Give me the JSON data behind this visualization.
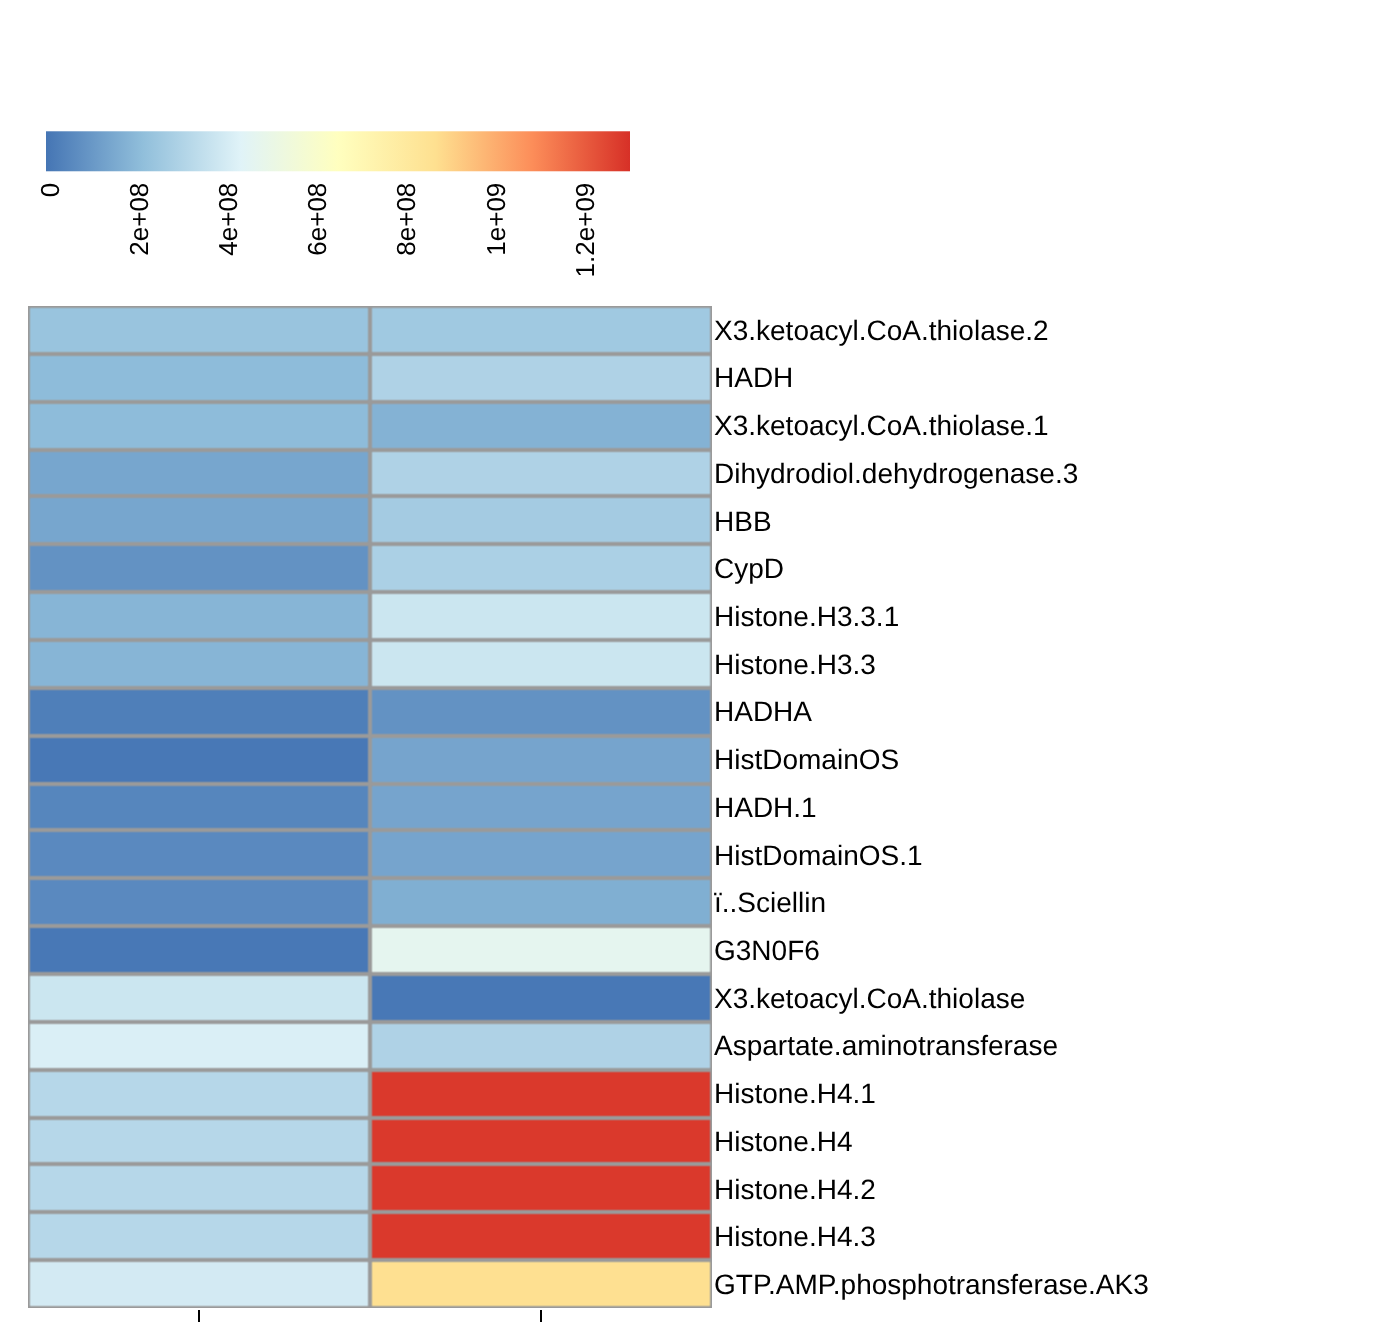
{
  "chart_data": {
    "type": "heatmap",
    "categories": [
      null,
      null
    ],
    "y_categories": [
      "X3.ketoacyl.CoA.thiolase.2",
      "HADH",
      "X3.ketoacyl.CoA.thiolase.1",
      "Dihydrodiol.dehydrogenase.3",
      "HBB",
      "CypD",
      "Histone.H3.3.1",
      "Histone.H3.3",
      "HADHA",
      "HistDomainOS",
      "HADH.1",
      "HistDomainOS.1",
      "ï..Sciellin",
      "G3N0F6",
      "X3.ketoacyl.CoA.thiolase",
      "Aspartate.aminotransferase",
      "Histone.H4.1",
      "Histone.H4",
      "Histone.H4.2",
      "Histone.H4.3",
      "GTP.AMP.phosphotransferase.AK3"
    ],
    "cells": [
      [
        230000000,
        250000000
      ],
      [
        200000000,
        290000000
      ],
      [
        200000000,
        170000000
      ],
      [
        135000000,
        290000000
      ],
      [
        135000000,
        260000000
      ],
      [
        75000000,
        280000000
      ],
      [
        180000000,
        370000000
      ],
      [
        180000000,
        370000000
      ],
      [
        20000000,
        75000000
      ],
      [
        0,
        130000000
      ],
      [
        40000000,
        130000000
      ],
      [
        50000000,
        130000000
      ],
      [
        50000000,
        160000000
      ],
      [
        0,
        460000000
      ],
      [
        370000000,
        0
      ],
      [
        410000000,
        290000000
      ],
      [
        310000000,
        1280000000
      ],
      [
        310000000,
        1280000000
      ],
      [
        310000000,
        1280000000
      ],
      [
        310000000,
        1280000000
      ],
      [
        390000000,
        860000000
      ]
    ],
    "clim": [
      -10000000,
      1300000000
    ],
    "cticks": [
      {
        "value": 1200000000,
        "label": "1.2e+09"
      },
      {
        "value": 1000000000,
        "label": "1e+09"
      },
      {
        "value": 800000000,
        "label": "8e+08"
      },
      {
        "value": 600000000,
        "label": "6e+08"
      },
      {
        "value": 400000000,
        "label": "4e+08"
      },
      {
        "value": 200000000,
        "label": "2e+08"
      },
      {
        "value": 0,
        "label": "0"
      }
    ]
  }
}
